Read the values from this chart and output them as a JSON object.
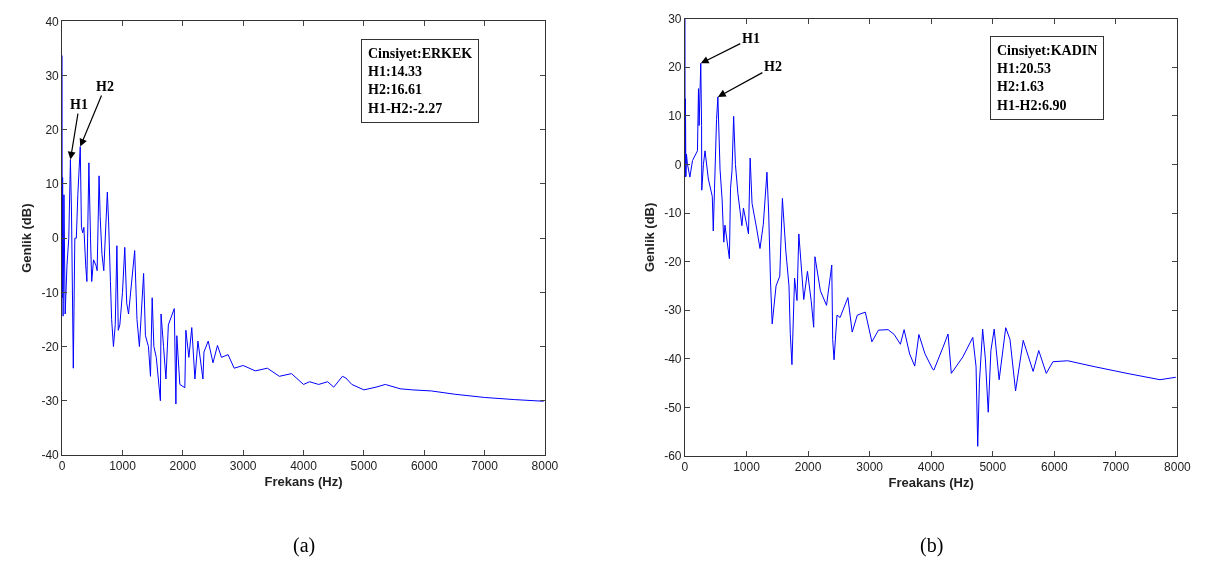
{
  "chart_data": [
    {
      "type": "line",
      "xlabel": "Frekans (Hz)",
      "ylabel": "Genlik (dB)",
      "x": [
        0,
        3,
        8,
        15,
        30,
        50,
        80,
        110,
        137,
        155,
        185,
        210,
        235,
        260,
        300,
        320,
        340,
        360,
        390,
        410,
        443,
        470,
        490,
        520,
        560,
        580,
        612,
        630,
        660,
        690,
        749,
        770,
        800,
        820,
        850,
        880,
        907,
        930,
        956,
        1000,
        1038,
        1070,
        1100,
        1202,
        1240,
        1280,
        1350,
        1380,
        1430,
        1464,
        1492,
        1520,
        1560,
        1628,
        1639,
        1680,
        1720,
        1760,
        1858,
        1885,
        1900,
        1950,
        2033,
        2050,
        2100,
        2148,
        2200,
        2250,
        2333,
        2350,
        2420,
        2500,
        2574,
        2640,
        2750,
        2850,
        3000,
        3200,
        3400,
        3600,
        3800,
        4000,
        4100,
        4250,
        4400,
        4500,
        4644,
        4700,
        4800,
        5000,
        5200,
        5355,
        5600,
        5800,
        6118,
        6500,
        6995,
        7500,
        7978
      ],
      "series": [
        {
          "color": "#0000ff",
          "values": [
            33.7,
            -11,
            11.2,
            -14.4,
            8,
            -14,
            -5,
            0,
            14.5,
            5,
            -24,
            0,
            0,
            8,
            16.9,
            2,
            1,
            2,
            -5,
            -8,
            13.9,
            0,
            -8,
            -4,
            -5,
            -6,
            11.5,
            4,
            -3,
            -6,
            8.5,
            3,
            -8,
            -15,
            -20,
            -16,
            -1.4,
            -17,
            -16,
            -10,
            -1.7,
            -12,
            -14,
            -2.3,
            -15,
            -20,
            -6.5,
            -18,
            -20,
            -25.5,
            -11,
            -20,
            -22,
            -30,
            -14,
            -20,
            -26,
            -16,
            -13,
            -30.6,
            -18,
            -27,
            -27.6,
            -17,
            -22,
            -16.5,
            -26,
            -19,
            -26,
            -21,
            -19,
            -23,
            -19.8,
            -22,
            -21.5,
            -24,
            -23.5,
            -24.5,
            -24,
            -25.5,
            -25,
            -27,
            -26.5,
            -27,
            -26.5,
            -27.5,
            -25.5,
            -25.8,
            -27,
            -28,
            -27.5,
            -27,
            -27.8,
            -28,
            -28.2,
            -28.8,
            -29.4,
            -29.8,
            -30.1
          ]
        }
      ],
      "xlim": [
        0,
        8000
      ],
      "xticks": [
        0,
        1000,
        2000,
        3000,
        4000,
        5000,
        6000,
        7000,
        8000
      ],
      "ylim": [
        -40,
        40
      ],
      "yticks": [
        -40,
        -30,
        -20,
        -10,
        0,
        10,
        20,
        30,
        40
      ],
      "marker": "none",
      "line_style": "solid",
      "annotations": [
        "Cinsiyet:ERKEK\nH1:14.33\nH2:16.61\nH1-H2:-2.27",
        "(a)",
        {
          "text": "H1",
          "x": 137,
          "y": 14.5
        },
        {
          "text": "H2",
          "x": 300,
          "y": 16.9
        }
      ]
    },
    {
      "type": "line",
      "xlabel": "Freakans (Hz)",
      "ylabel": "Genlik (dB)",
      "x": [
        0,
        3,
        8,
        15,
        25,
        40,
        80,
        123,
        203,
        220,
        230,
        257,
        270,
        273,
        300,
        326,
        380,
        444,
        460,
        480,
        513,
        535,
        570,
        604,
        631,
        650,
        722,
        740,
        765,
        791,
        820,
        860,
        925,
        950,
        1032,
        1059,
        1090,
        1166,
        1219,
        1273,
        1332,
        1360,
        1390,
        1417,
        1480,
        1540,
        1583,
        1640,
        1690,
        1711,
        1738,
        1781,
        1820,
        1850,
        1930,
        1990,
        2050,
        2091,
        2112,
        2200,
        2300,
        2385,
        2400,
        2422,
        2470,
        2520,
        2647,
        2717,
        2800,
        2930,
        3037,
        3144,
        3300,
        3400,
        3500,
        3560,
        3650,
        3733,
        3800,
        3900,
        4027,
        4044,
        4193,
        4274,
        4327,
        4515,
        4676,
        4729,
        4756,
        4783,
        4836,
        4880,
        4927,
        4970,
        5024,
        5104,
        5211,
        5280,
        5371,
        5495,
        5656,
        5747,
        5870,
        5977,
        6218,
        6646,
        7181,
        7717,
        7974
      ],
      "series": [
        {
          "color": "#0000ff",
          "values": [
            30,
            -2.6,
            13.5,
            -2.5,
            2.1,
            0.1,
            -2.6,
            0.8,
            2.8,
            15.6,
            8,
            20.8,
            8,
            -5.3,
            0,
            2.8,
            -3,
            -6.6,
            -13.7,
            -5,
            9.2,
            13.9,
            -1,
            -7.3,
            -16,
            -12.5,
            -19.4,
            -5,
            -1.2,
            9.9,
            0,
            -6,
            -12.6,
            -9,
            -14.3,
            1.3,
            -8,
            -13.3,
            -17.3,
            -12.3,
            -1.6,
            -10,
            -24,
            -32.8,
            -25,
            -23,
            -7,
            -18,
            -25,
            -34.8,
            -41.2,
            -23.4,
            -28,
            -14.3,
            -27.8,
            -22,
            -28,
            -33.5,
            -19,
            -26,
            -29,
            -20.7,
            -36,
            -40.2,
            -31,
            -31.5,
            -27.4,
            -34.5,
            -31,
            -30.4,
            -36.5,
            -34.1,
            -34,
            -35,
            -37,
            -34,
            -39,
            -41.5,
            -35,
            -39,
            -42.2,
            -42.3,
            -37.6,
            -34.9,
            -43,
            -39.6,
            -35.6,
            -41.6,
            -58,
            -45,
            -33.9,
            -40,
            -51,
            -38.3,
            -33.9,
            -44.3,
            -33.6,
            -36,
            -46.6,
            -36.2,
            -42.6,
            -38.3,
            -43,
            -40.6,
            -40.4,
            -41.6,
            -43,
            -44.3,
            -43.8
          ]
        }
      ],
      "xlim": [
        0,
        8000
      ],
      "xticks": [
        0,
        1000,
        2000,
        3000,
        4000,
        5000,
        6000,
        7000,
        8000
      ],
      "ylim": [
        -60,
        30
      ],
      "yticks": [
        -60,
        -50,
        -40,
        -30,
        -20,
        -10,
        0,
        10,
        20,
        30
      ],
      "marker": "none",
      "line_style": "solid",
      "annotations": [
        "Cinsiyet:KADIN\nH1:20.53\nH2:1.63\nH1-H2:6.90",
        "(b)",
        {
          "text": "H1",
          "x": 257,
          "y": 20.8
        },
        {
          "text": "H2",
          "x": 535,
          "y": 13.9
        }
      ]
    }
  ]
}
